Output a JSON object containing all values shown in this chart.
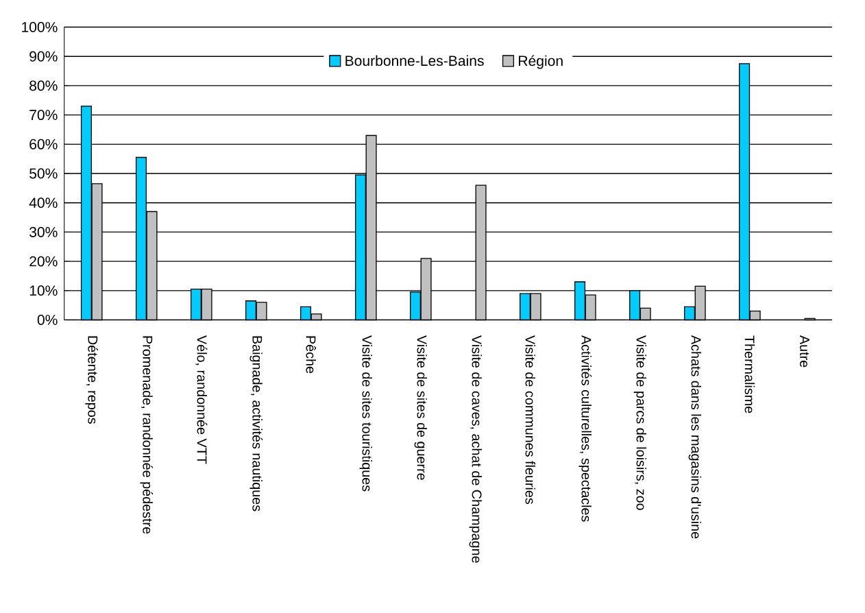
{
  "chart_data": {
    "type": "bar",
    "categories": [
      "Détente, repos",
      "Promenade, randonnée pédestre",
      "Vélo, randonnée VTT",
      "Baignade, activités nautiques",
      "Pêche",
      "Visite de sites touristiques",
      "Visite de sites de guerre",
      "Visite de caves, achat de Champagne",
      "Visite de communes fleuries",
      "Activités culturelles, spectacles",
      "Visite de parcs de loisirs, zoo",
      "Achats dans les magasins d'usine",
      "Thermalisme",
      "Autre"
    ],
    "series": [
      {
        "name": "Bourbonne-Les-Bains",
        "color": "#00ccff",
        "values": [
          73,
          55.5,
          10.5,
          6.5,
          4.5,
          49.5,
          9.5,
          null,
          9,
          13,
          10,
          4.5,
          87.5,
          null
        ]
      },
      {
        "name": "Région",
        "color": "#c0c0c0",
        "values": [
          46.5,
          37,
          10.5,
          6,
          2,
          63,
          21,
          46,
          9,
          8.5,
          4,
          11.5,
          3,
          0.5
        ]
      }
    ],
    "ylim": [
      0,
      100
    ],
    "yticks": [
      {
        "value": 0,
        "label": "0%"
      },
      {
        "value": 10,
        "label": "10%"
      },
      {
        "value": 20,
        "label": "20%"
      },
      {
        "value": 30,
        "label": "30%"
      },
      {
        "value": 40,
        "label": "40%"
      },
      {
        "value": 50,
        "label": "50%"
      },
      {
        "value": 60,
        "label": "60%"
      },
      {
        "value": 70,
        "label": "70%"
      },
      {
        "value": 80,
        "label": "80%"
      },
      {
        "value": 90,
        "label": "90%"
      },
      {
        "value": 100,
        "label": "100%"
      }
    ],
    "grid": "y",
    "legend": "top"
  }
}
